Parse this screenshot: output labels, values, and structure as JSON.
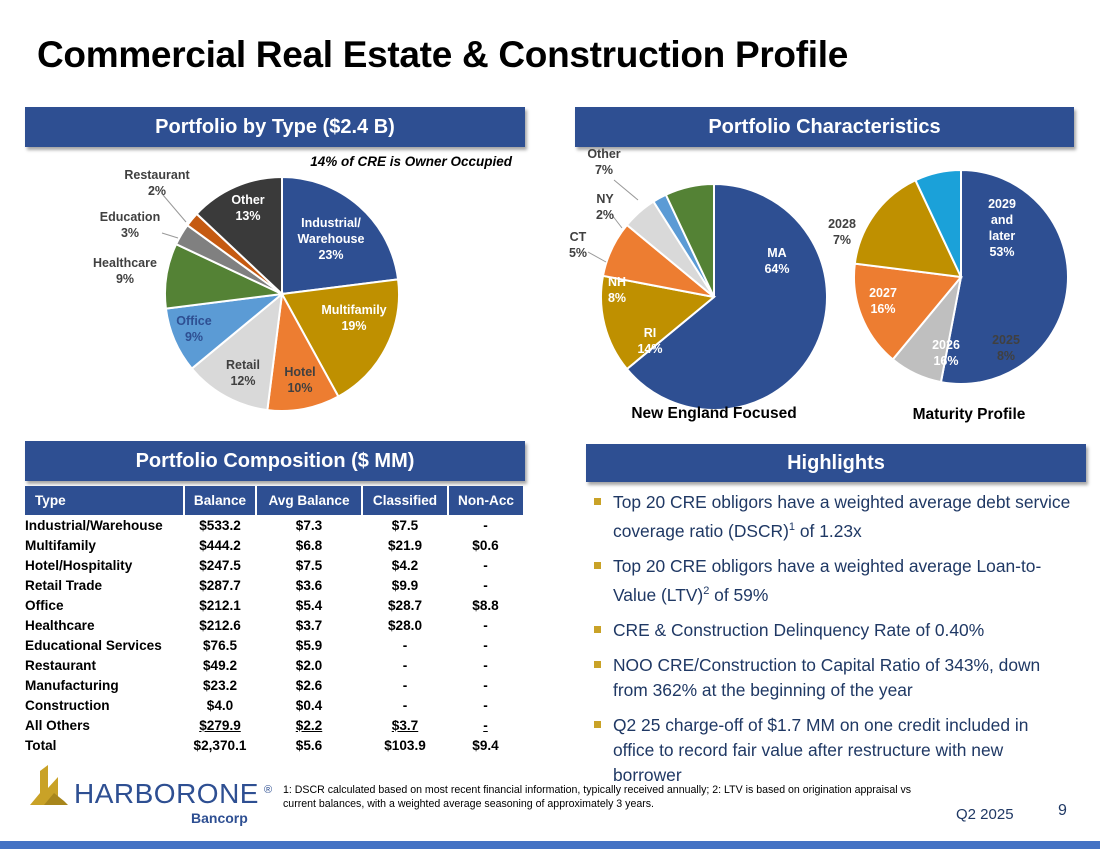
{
  "title": "Commercial Real Estate & Construction Profile",
  "portfolio_by_type": {
    "banner": "Portfolio by Type ($2.4 B)",
    "note": "14% of CRE is Owner Occupied"
  },
  "portfolio_characteristics": {
    "banner": "Portfolio Characteristics"
  },
  "composition": {
    "banner": "Portfolio Composition ($ MM)",
    "headers": [
      "Type",
      "Balance",
      "Avg Balance",
      "Classified",
      "Non-Acc"
    ],
    "rows": [
      [
        "Industrial/Warehouse",
        "$533.2",
        "$7.3",
        "$7.5",
        "-"
      ],
      [
        "Multifamily",
        "$444.2",
        "$6.8",
        "$21.9",
        "$0.6"
      ],
      [
        "Hotel/Hospitality",
        "$247.5",
        "$7.5",
        "$4.2",
        "-"
      ],
      [
        "Retail Trade",
        "$287.7",
        "$3.6",
        "$9.9",
        "-"
      ],
      [
        "Office",
        "$212.1",
        "$5.4",
        "$28.7",
        "$8.8"
      ],
      [
        "Healthcare",
        "$212.6",
        "$3.7",
        "$28.0",
        "-"
      ],
      [
        "Educational Services",
        "$76.5",
        "$5.9",
        "-",
        "-"
      ],
      [
        "Restaurant",
        "$49.2",
        "$2.0",
        "-",
        "-"
      ],
      [
        "Manufacturing",
        "$23.2",
        "$2.6",
        "-",
        "-"
      ],
      [
        "Construction",
        "$4.0",
        "$0.4",
        "-",
        "-"
      ],
      [
        "All Others",
        "$279.9",
        "$2.2",
        "$3.7",
        "-"
      ],
      [
        "Total",
        "$2,370.1",
        "$5.6",
        "$103.9",
        "$9.4"
      ]
    ]
  },
  "highlights": {
    "banner": "Highlights",
    "items": [
      [
        "Top 20 CRE obligors have a weighted average debt service coverage ratio (DSCR)",
        "1",
        " of 1.23x"
      ],
      [
        "Top 20 CRE obligors have a weighted average Loan-to-Value (LTV)",
        "2",
        " of 59%"
      ],
      [
        "CRE & Construction Delinquency Rate of 0.40%",
        "",
        ""
      ],
      [
        "NOO CRE/Construction to Capital Ratio of 343%, down from 362% at the beginning of the year",
        "",
        ""
      ],
      [
        "Q2 25 charge-off of $1.7 MM on one credit included in office to record fair value after restructure with new borrower",
        "",
        ""
      ]
    ]
  },
  "footnote": "1: DSCR calculated based on most recent financial information, typically received annually; 2: LTV is based on origination appraisal vs current balances, with a weighted average seasoning of approximately 3 years.",
  "logo": {
    "name": "HARBORONE",
    "registered": "®",
    "sub": "Bancorp"
  },
  "footer": {
    "quarter": "Q2 2025",
    "page": "9"
  },
  "chart_data": [
    {
      "type": "pie",
      "title": "",
      "slices": [
        {
          "label": "Industrial/\nWarehouse",
          "value": 23,
          "pct": "23%",
          "color": "#2E4F92",
          "inside": true,
          "text_color": "#ffffff"
        },
        {
          "label": "Multifamily",
          "value": 19,
          "pct": "19%",
          "color": "#BF9000",
          "inside": true,
          "text_color": "#ffffff"
        },
        {
          "label": "Hotel",
          "value": 10,
          "pct": "10%",
          "color": "#ED7D31",
          "inside": true,
          "text_color": "#404040"
        },
        {
          "label": "Retail",
          "value": 12,
          "pct": "12%",
          "color": "#D9D9D9",
          "inside": true,
          "text_color": "#404040"
        },
        {
          "label": "Office",
          "value": 9,
          "pct": "9%",
          "color": "#5B9BD5",
          "inside": true,
          "text_color": "#2E4F92"
        },
        {
          "label": "Healthcare",
          "value": 9,
          "pct": "9%",
          "color": "#548235",
          "inside": false,
          "text_color": "#404040"
        },
        {
          "label": "Education",
          "value": 3,
          "pct": "3%",
          "color": "#808080",
          "inside": false,
          "text_color": "#404040"
        },
        {
          "label": "Restaurant",
          "value": 2,
          "pct": "2%",
          "color": "#C55A11",
          "inside": false,
          "text_color": "#404040"
        },
        {
          "label": "Other",
          "value": 13,
          "pct": "13%",
          "color": "#3A3A3A",
          "inside": true,
          "text_color": "#ffffff"
        }
      ]
    },
    {
      "type": "pie",
      "title": "New England Focused",
      "slices": [
        {
          "label": "MA",
          "value": 64,
          "pct": "64%",
          "color": "#2E4F92",
          "inside": true,
          "text_color": "#ffffff"
        },
        {
          "label": "RI",
          "value": 14,
          "pct": "14%",
          "color": "#BF9000",
          "inside": true,
          "text_color": "#ffffff"
        },
        {
          "label": "NH",
          "value": 8,
          "pct": "8%",
          "color": "#ED7D31",
          "inside": true,
          "text_color": "#ffffff"
        },
        {
          "label": "CT",
          "value": 5,
          "pct": "5%",
          "color": "#D9D9D9",
          "inside": false,
          "text_color": "#404040"
        },
        {
          "label": "NY",
          "value": 2,
          "pct": "2%",
          "color": "#5B9BD5",
          "inside": false,
          "text_color": "#404040"
        },
        {
          "label": "Other",
          "value": 7,
          "pct": "7%",
          "color": "#548235",
          "inside": false,
          "text_color": "#404040"
        }
      ]
    },
    {
      "type": "pie",
      "title": "Maturity Profile",
      "slices": [
        {
          "label": "2029\nand\nlater",
          "value": 53,
          "pct": "53%",
          "color": "#2E4F92",
          "inside": true,
          "text_color": "#ffffff"
        },
        {
          "label": "2025",
          "value": 8,
          "pct": "8%",
          "color": "#BFBFBF",
          "inside": true,
          "text_color": "#404040"
        },
        {
          "label": "2026",
          "value": 16,
          "pct": "16%",
          "color": "#ED7D31",
          "inside": true,
          "text_color": "#ffffff"
        },
        {
          "label": "2027",
          "value": 16,
          "pct": "16%",
          "color": "#BF9000",
          "inside": true,
          "text_color": "#ffffff"
        },
        {
          "label": "2028",
          "value": 7,
          "pct": "7%",
          "color": "#1BA1D9",
          "inside": false,
          "text_color": "#404040"
        }
      ]
    }
  ]
}
